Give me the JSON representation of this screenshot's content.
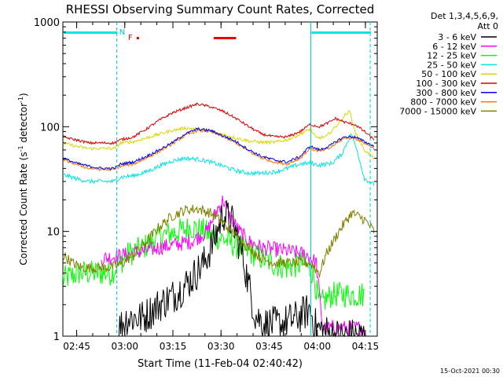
{
  "chart_data": {
    "type": "line",
    "title": "RHESSI Observing Summary Count Rates, Corrected",
    "xlabel": "Start Time (11-Feb-04 02:40:42)",
    "ylabel_main": "Corrected Count Rate (s",
    "ylabel_sup1": "-1",
    "ylabel_mid": " detector",
    "ylabel_sup2": "-1",
    "ylabel_end": ")",
    "yscale": "log",
    "ylim": [
      1,
      1000
    ],
    "xlim_minutes": [
      0,
      98
    ],
    "x_ticks": [
      {
        "label": "02:45",
        "minute": 4.3
      },
      {
        "label": "03:00",
        "minute": 19.3
      },
      {
        "label": "03:15",
        "minute": 34.3
      },
      {
        "label": "03:30",
        "minute": 49.3
      },
      {
        "label": "03:45",
        "minute": 64.3
      },
      {
        "label": "04:00",
        "minute": 79.3
      },
      {
        "label": "04:15",
        "minute": 94.3
      }
    ],
    "y_ticks": [
      {
        "label": "1",
        "value": 1
      },
      {
        "label": "10",
        "value": 10
      },
      {
        "label": "100",
        "value": 100
      },
      {
        "label": "1000",
        "value": 1000
      }
    ],
    "detectors": "Det 1,3,4,5,6,9,",
    "attenuator": "Att 0",
    "footer_date": "15-Oct-2021 00:30",
    "flags": {
      "night_bars": [
        [
          0,
          17
        ],
        [
          77.5,
          96
        ]
      ],
      "saa_markers": [
        {
          "label": "N",
          "minute": 18.5
        }
      ],
      "flare_markers": [
        {
          "label": "F",
          "minute": 21
        }
      ],
      "flare_bars": [
        [
          23,
          23.6
        ],
        [
          47,
          54
        ]
      ],
      "boundaries_solid": [
        77.3
      ],
      "boundaries_dashed": [
        16.8,
        95.8
      ]
    },
    "series": [
      {
        "name": "3 - 6 keV",
        "color": "#000000",
        "noise": 0.35,
        "start": 17.5,
        "end": 94,
        "points": [
          [
            17.5,
            1.2
          ],
          [
            20,
            1.5
          ],
          [
            25,
            1.5
          ],
          [
            30,
            2
          ],
          [
            35,
            2.5
          ],
          [
            40,
            3.5
          ],
          [
            44,
            5
          ],
          [
            47,
            8
          ],
          [
            50,
            15
          ],
          [
            53,
            12
          ],
          [
            56,
            6
          ],
          [
            58,
            3
          ],
          [
            60,
            1.6
          ],
          [
            63,
            1.3
          ],
          [
            68,
            1.3
          ],
          [
            73,
            1.5
          ],
          [
            77,
            1.8
          ],
          [
            79,
            1.2
          ],
          [
            85,
            1.0
          ],
          [
            94,
            1.0
          ]
        ]
      },
      {
        "name": "6 - 12 keV",
        "color": "#ff00ff",
        "noise": 0.15,
        "start": 12,
        "end": 94,
        "points": [
          [
            12,
            5.5
          ],
          [
            20,
            6
          ],
          [
            30,
            7
          ],
          [
            40,
            8
          ],
          [
            45,
            10
          ],
          [
            48,
            16
          ],
          [
            50,
            20
          ],
          [
            52,
            14
          ],
          [
            55,
            10
          ],
          [
            58,
            8
          ],
          [
            62,
            7
          ],
          [
            70,
            6.5
          ],
          [
            76,
            6
          ],
          [
            79,
            5
          ],
          [
            81,
            1.2
          ],
          [
            94,
            1.2
          ]
        ]
      },
      {
        "name": "12 - 25 keV",
        "color": "#00ff00",
        "noise": 0.25,
        "start": 0,
        "end": 94,
        "points": [
          [
            0,
            3.5
          ],
          [
            5,
            4
          ],
          [
            10,
            4
          ],
          [
            15,
            4
          ],
          [
            20,
            6
          ],
          [
            25,
            7
          ],
          [
            30,
            9
          ],
          [
            36,
            10
          ],
          [
            40,
            11
          ],
          [
            44,
            10
          ],
          [
            47,
            9
          ],
          [
            50,
            8.5
          ],
          [
            55,
            7
          ],
          [
            60,
            6
          ],
          [
            65,
            5
          ],
          [
            70,
            4.5
          ],
          [
            75,
            5
          ],
          [
            78,
            4
          ],
          [
            80,
            2
          ],
          [
            84,
            2.5
          ],
          [
            94,
            2.5
          ]
        ]
      },
      {
        "name": "25 - 50 keV",
        "color": "#00e5e5",
        "noise": 0.04,
        "start": 0,
        "end": 97,
        "points": [
          [
            0,
            35
          ],
          [
            4,
            32
          ],
          [
            8,
            30
          ],
          [
            12,
            30
          ],
          [
            16,
            30
          ],
          [
            18,
            33
          ],
          [
            22,
            34
          ],
          [
            26,
            37
          ],
          [
            30,
            42
          ],
          [
            34,
            47
          ],
          [
            38,
            50
          ],
          [
            42,
            49
          ],
          [
            46,
            46
          ],
          [
            50,
            42
          ],
          [
            54,
            38
          ],
          [
            58,
            36
          ],
          [
            62,
            36
          ],
          [
            66,
            37
          ],
          [
            70,
            40
          ],
          [
            74,
            44
          ],
          [
            77,
            45
          ],
          [
            80,
            43
          ],
          [
            84,
            45
          ],
          [
            87,
            55
          ],
          [
            89,
            75
          ],
          [
            90,
            85
          ],
          [
            92,
            55
          ],
          [
            94,
            32
          ],
          [
            97,
            28
          ]
        ]
      },
      {
        "name": "50 - 100 keV",
        "color": "#d8d800",
        "noise": 0.03,
        "start": 0,
        "end": 97,
        "points": [
          [
            0,
            70
          ],
          [
            4,
            65
          ],
          [
            8,
            62
          ],
          [
            12,
            62
          ],
          [
            16,
            62
          ],
          [
            18,
            70
          ],
          [
            22,
            72
          ],
          [
            26,
            78
          ],
          [
            30,
            85
          ],
          [
            34,
            92
          ],
          [
            38,
            97
          ],
          [
            42,
            95
          ],
          [
            46,
            90
          ],
          [
            50,
            84
          ],
          [
            54,
            78
          ],
          [
            58,
            73
          ],
          [
            62,
            71
          ],
          [
            66,
            71
          ],
          [
            70,
            75
          ],
          [
            74,
            85
          ],
          [
            77,
            95
          ],
          [
            79,
            78
          ],
          [
            82,
            80
          ],
          [
            85,
            100
          ],
          [
            88,
            130
          ],
          [
            89.5,
            140
          ],
          [
            91,
            90
          ],
          [
            94,
            60
          ],
          [
            97,
            50
          ]
        ]
      },
      {
        "name": "100 - 300 keV",
        "color": "#dd0000",
        "noise": 0.025,
        "start": 0,
        "end": 97,
        "points": [
          [
            0,
            80
          ],
          [
            4,
            75
          ],
          [
            8,
            70
          ],
          [
            12,
            70
          ],
          [
            16,
            70
          ],
          [
            18,
            75
          ],
          [
            22,
            80
          ],
          [
            26,
            95
          ],
          [
            30,
            115
          ],
          [
            34,
            135
          ],
          [
            38,
            150
          ],
          [
            42,
            165
          ],
          [
            46,
            155
          ],
          [
            50,
            140
          ],
          [
            54,
            120
          ],
          [
            58,
            100
          ],
          [
            62,
            85
          ],
          [
            66,
            80
          ],
          [
            70,
            80
          ],
          [
            74,
            90
          ],
          [
            77,
            105
          ],
          [
            80,
            100
          ],
          [
            83,
            110
          ],
          [
            85,
            120
          ],
          [
            88,
            110
          ],
          [
            91,
            105
          ],
          [
            94,
            90
          ],
          [
            97,
            75
          ]
        ]
      },
      {
        "name": "300 - 800 keV",
        "color": "#0000ee",
        "noise": 0.025,
        "start": 0,
        "end": 97,
        "points": [
          [
            0,
            50
          ],
          [
            4,
            45
          ],
          [
            8,
            42
          ],
          [
            12,
            40
          ],
          [
            16,
            40
          ],
          [
            18,
            44
          ],
          [
            22,
            46
          ],
          [
            26,
            52
          ],
          [
            30,
            60
          ],
          [
            34,
            70
          ],
          [
            38,
            85
          ],
          [
            42,
            95
          ],
          [
            46,
            92
          ],
          [
            50,
            82
          ],
          [
            54,
            72
          ],
          [
            58,
            60
          ],
          [
            62,
            52
          ],
          [
            66,
            48
          ],
          [
            70,
            46
          ],
          [
            74,
            52
          ],
          [
            77,
            65
          ],
          [
            80,
            60
          ],
          [
            83,
            65
          ],
          [
            86,
            75
          ],
          [
            88,
            80
          ],
          [
            91,
            80
          ],
          [
            94,
            72
          ],
          [
            97,
            65
          ]
        ]
      },
      {
        "name": "800 - 7000 keV",
        "color": "#ff7700",
        "noise": 0.025,
        "start": 0,
        "end": 97,
        "points": [
          [
            0,
            48
          ],
          [
            4,
            44
          ],
          [
            8,
            40
          ],
          [
            12,
            39
          ],
          [
            16,
            39
          ],
          [
            18,
            42
          ],
          [
            22,
            44
          ],
          [
            26,
            50
          ],
          [
            30,
            58
          ],
          [
            34,
            68
          ],
          [
            38,
            82
          ],
          [
            42,
            92
          ],
          [
            46,
            90
          ],
          [
            50,
            80
          ],
          [
            54,
            70
          ],
          [
            58,
            58
          ],
          [
            62,
            50
          ],
          [
            66,
            46
          ],
          [
            70,
            44
          ],
          [
            74,
            50
          ],
          [
            77,
            62
          ],
          [
            80,
            58
          ],
          [
            83,
            62
          ],
          [
            86,
            72
          ],
          [
            88,
            78
          ],
          [
            91,
            78
          ],
          [
            94,
            70
          ],
          [
            97,
            62
          ]
        ]
      },
      {
        "name": "7000 - 15000 keV",
        "color": "#808000",
        "noise": 0.1,
        "start": 0,
        "end": 97,
        "points": [
          [
            0,
            6
          ],
          [
            3,
            5
          ],
          [
            6,
            4.5
          ],
          [
            10,
            4.5
          ],
          [
            14,
            4.5
          ],
          [
            18,
            4.8
          ],
          [
            22,
            6
          ],
          [
            26,
            8
          ],
          [
            30,
            11
          ],
          [
            34,
            14
          ],
          [
            38,
            16
          ],
          [
            42,
            16.5
          ],
          [
            46,
            15
          ],
          [
            50,
            12
          ],
          [
            54,
            9
          ],
          [
            58,
            7
          ],
          [
            62,
            5.5
          ],
          [
            66,
            5
          ],
          [
            70,
            5
          ],
          [
            74,
            5
          ],
          [
            77,
            5
          ],
          [
            80,
            4
          ],
          [
            82,
            6
          ],
          [
            86,
            10
          ],
          [
            90,
            15
          ],
          [
            94,
            13
          ],
          [
            97,
            10
          ]
        ]
      }
    ]
  }
}
